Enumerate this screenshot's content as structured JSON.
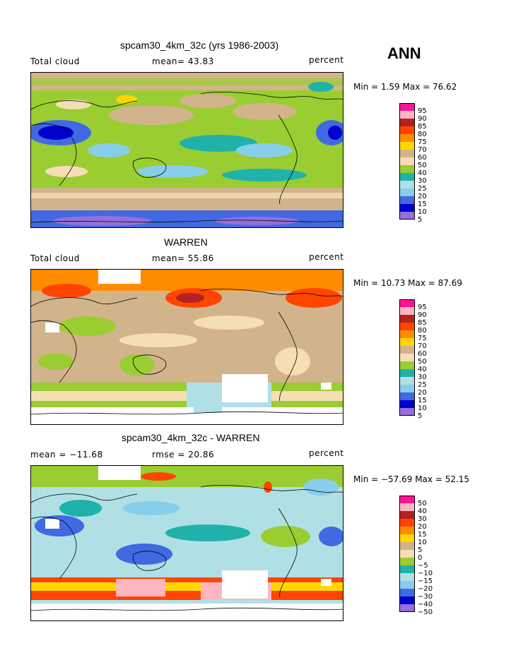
{
  "season": "ANN",
  "panels": [
    {
      "title": "spcam30_4km_32c (yrs 1986-2003)",
      "left_label": "Total cloud",
      "mid_label": "mean=  43.83",
      "right_label": "percent",
      "minmax": "Min =    1.59 Max =  76.62",
      "colorbar_labels": [
        "95",
        "90",
        "85",
        "80",
        "75",
        "70",
        "60",
        "50",
        "40",
        "30",
        "25",
        "20",
        "15",
        "10",
        "5"
      ]
    },
    {
      "title": "WARREN",
      "left_label": "Total cloud",
      "mid_label": "mean=  55.86",
      "right_label": "percent",
      "minmax": "Min =  10.73 Max =  87.69",
      "colorbar_labels": [
        "95",
        "90",
        "85",
        "80",
        "75",
        "70",
        "60",
        "50",
        "40",
        "30",
        "25",
        "20",
        "15",
        "10",
        "5"
      ]
    },
    {
      "title": "spcam30_4km_32c - WARREN",
      "left_label": "mean = −11.68",
      "mid_label": "rmse =  20.86",
      "right_label": "percent",
      "minmax": "Min = −57.69 Max =  52.15",
      "colorbar_labels": [
        "50",
        "40",
        "30",
        "20",
        "15",
        "10",
        "5",
        "0",
        "−5",
        "−10",
        "−15",
        "−20",
        "−30",
        "−40",
        "−50"
      ]
    }
  ],
  "colors": [
    "#ff1493",
    "#ffb6c1",
    "#b22222",
    "#ff4500",
    "#ff8c00",
    "#ffd700",
    "#d2b48c",
    "#f5deb3",
    "#9acd32",
    "#20b2aa",
    "#b0e0e6",
    "#87ceeb",
    "#4169e1",
    "#0000cd",
    "#9370db"
  ]
}
